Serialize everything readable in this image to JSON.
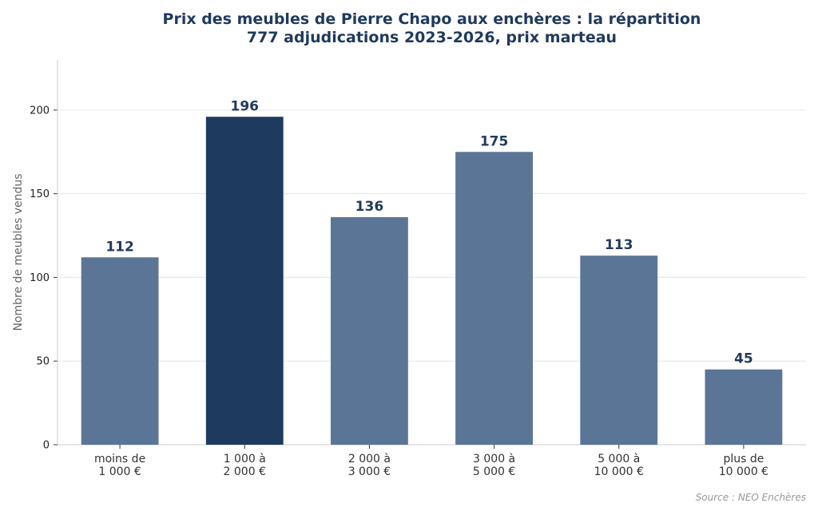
{
  "colors": {
    "bar": "#5b7597",
    "highlight": "#1f3a5f",
    "title": "#1f3a5f",
    "grid": "#e6e6e6",
    "axis": "#cccccc",
    "ylabel": "#666666",
    "source": "#999999"
  },
  "chart_data": {
    "type": "bar",
    "title": "Prix des meubles de Pierre Chapo aux enchères : la répartition",
    "subtitle": "777 adjudications 2023-2026, prix marteau",
    "xlabel": "",
    "ylabel": "Nombre de meubles vendus",
    "categories": [
      [
        "moins de",
        "1 000 €"
      ],
      [
        "1 000 à",
        "2 000 €"
      ],
      [
        "2 000 à",
        "3 000 €"
      ],
      [
        "3 000 à",
        "5 000 €"
      ],
      [
        "5 000 à",
        "10 000 €"
      ],
      [
        "plus de",
        "10 000 €"
      ]
    ],
    "values": [
      112,
      196,
      136,
      175,
      113,
      45
    ],
    "highlight_index": 1,
    "yticks": [
      0,
      50,
      100,
      150,
      200
    ],
    "ylim": [
      0,
      230
    ],
    "grid": true,
    "source": "Source : NEO Enchères"
  }
}
